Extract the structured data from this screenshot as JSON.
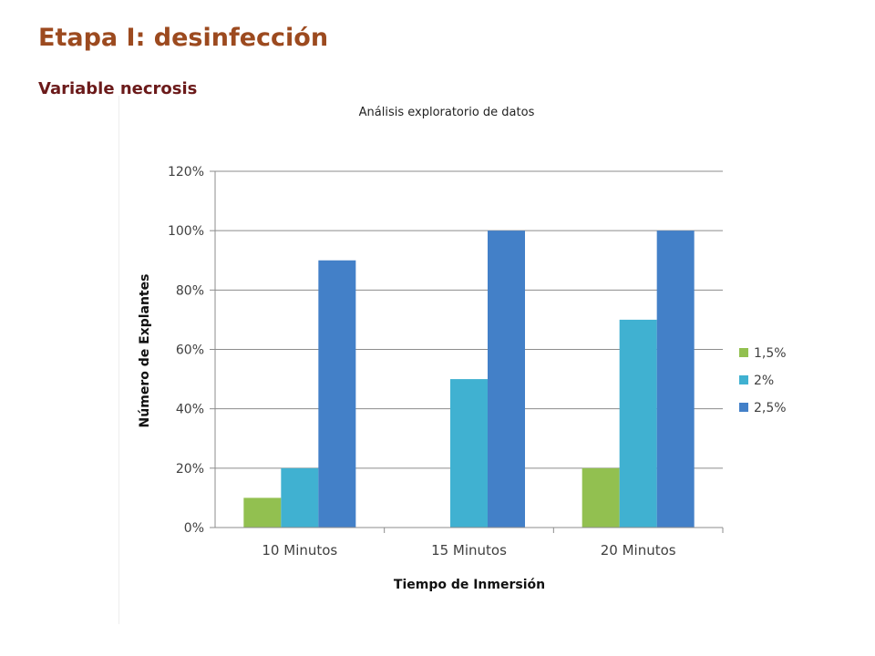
{
  "slide": {
    "title": "Etapa I: desinfección",
    "subtitle": "Variable necrosis"
  },
  "colors": {
    "title": "#9c4a1f",
    "subtitle": "#6b1a1a",
    "series": [
      "#92c050",
      "#40b1d1",
      "#4380c8"
    ]
  },
  "chart_data": {
    "type": "bar",
    "title": "Análisis exploratorio de datos",
    "xlabel": "Tiempo de Inmersión",
    "ylabel": "Número de Explantes",
    "categories": [
      "10 Minutos",
      "15 Minutos",
      "20 Minutos"
    ],
    "series": [
      {
        "name": "1,5%",
        "values": [
          10,
          0,
          20
        ]
      },
      {
        "name": "2%",
        "values": [
          20,
          50,
          70
        ]
      },
      {
        "name": "2,5%",
        "values": [
          90,
          100,
          100
        ]
      }
    ],
    "ylim": [
      0,
      120
    ],
    "yticks": [
      "0%",
      "20%",
      "40%",
      "60%",
      "80%",
      "100%",
      "120%"
    ],
    "grid": true,
    "legend_position": "right"
  }
}
